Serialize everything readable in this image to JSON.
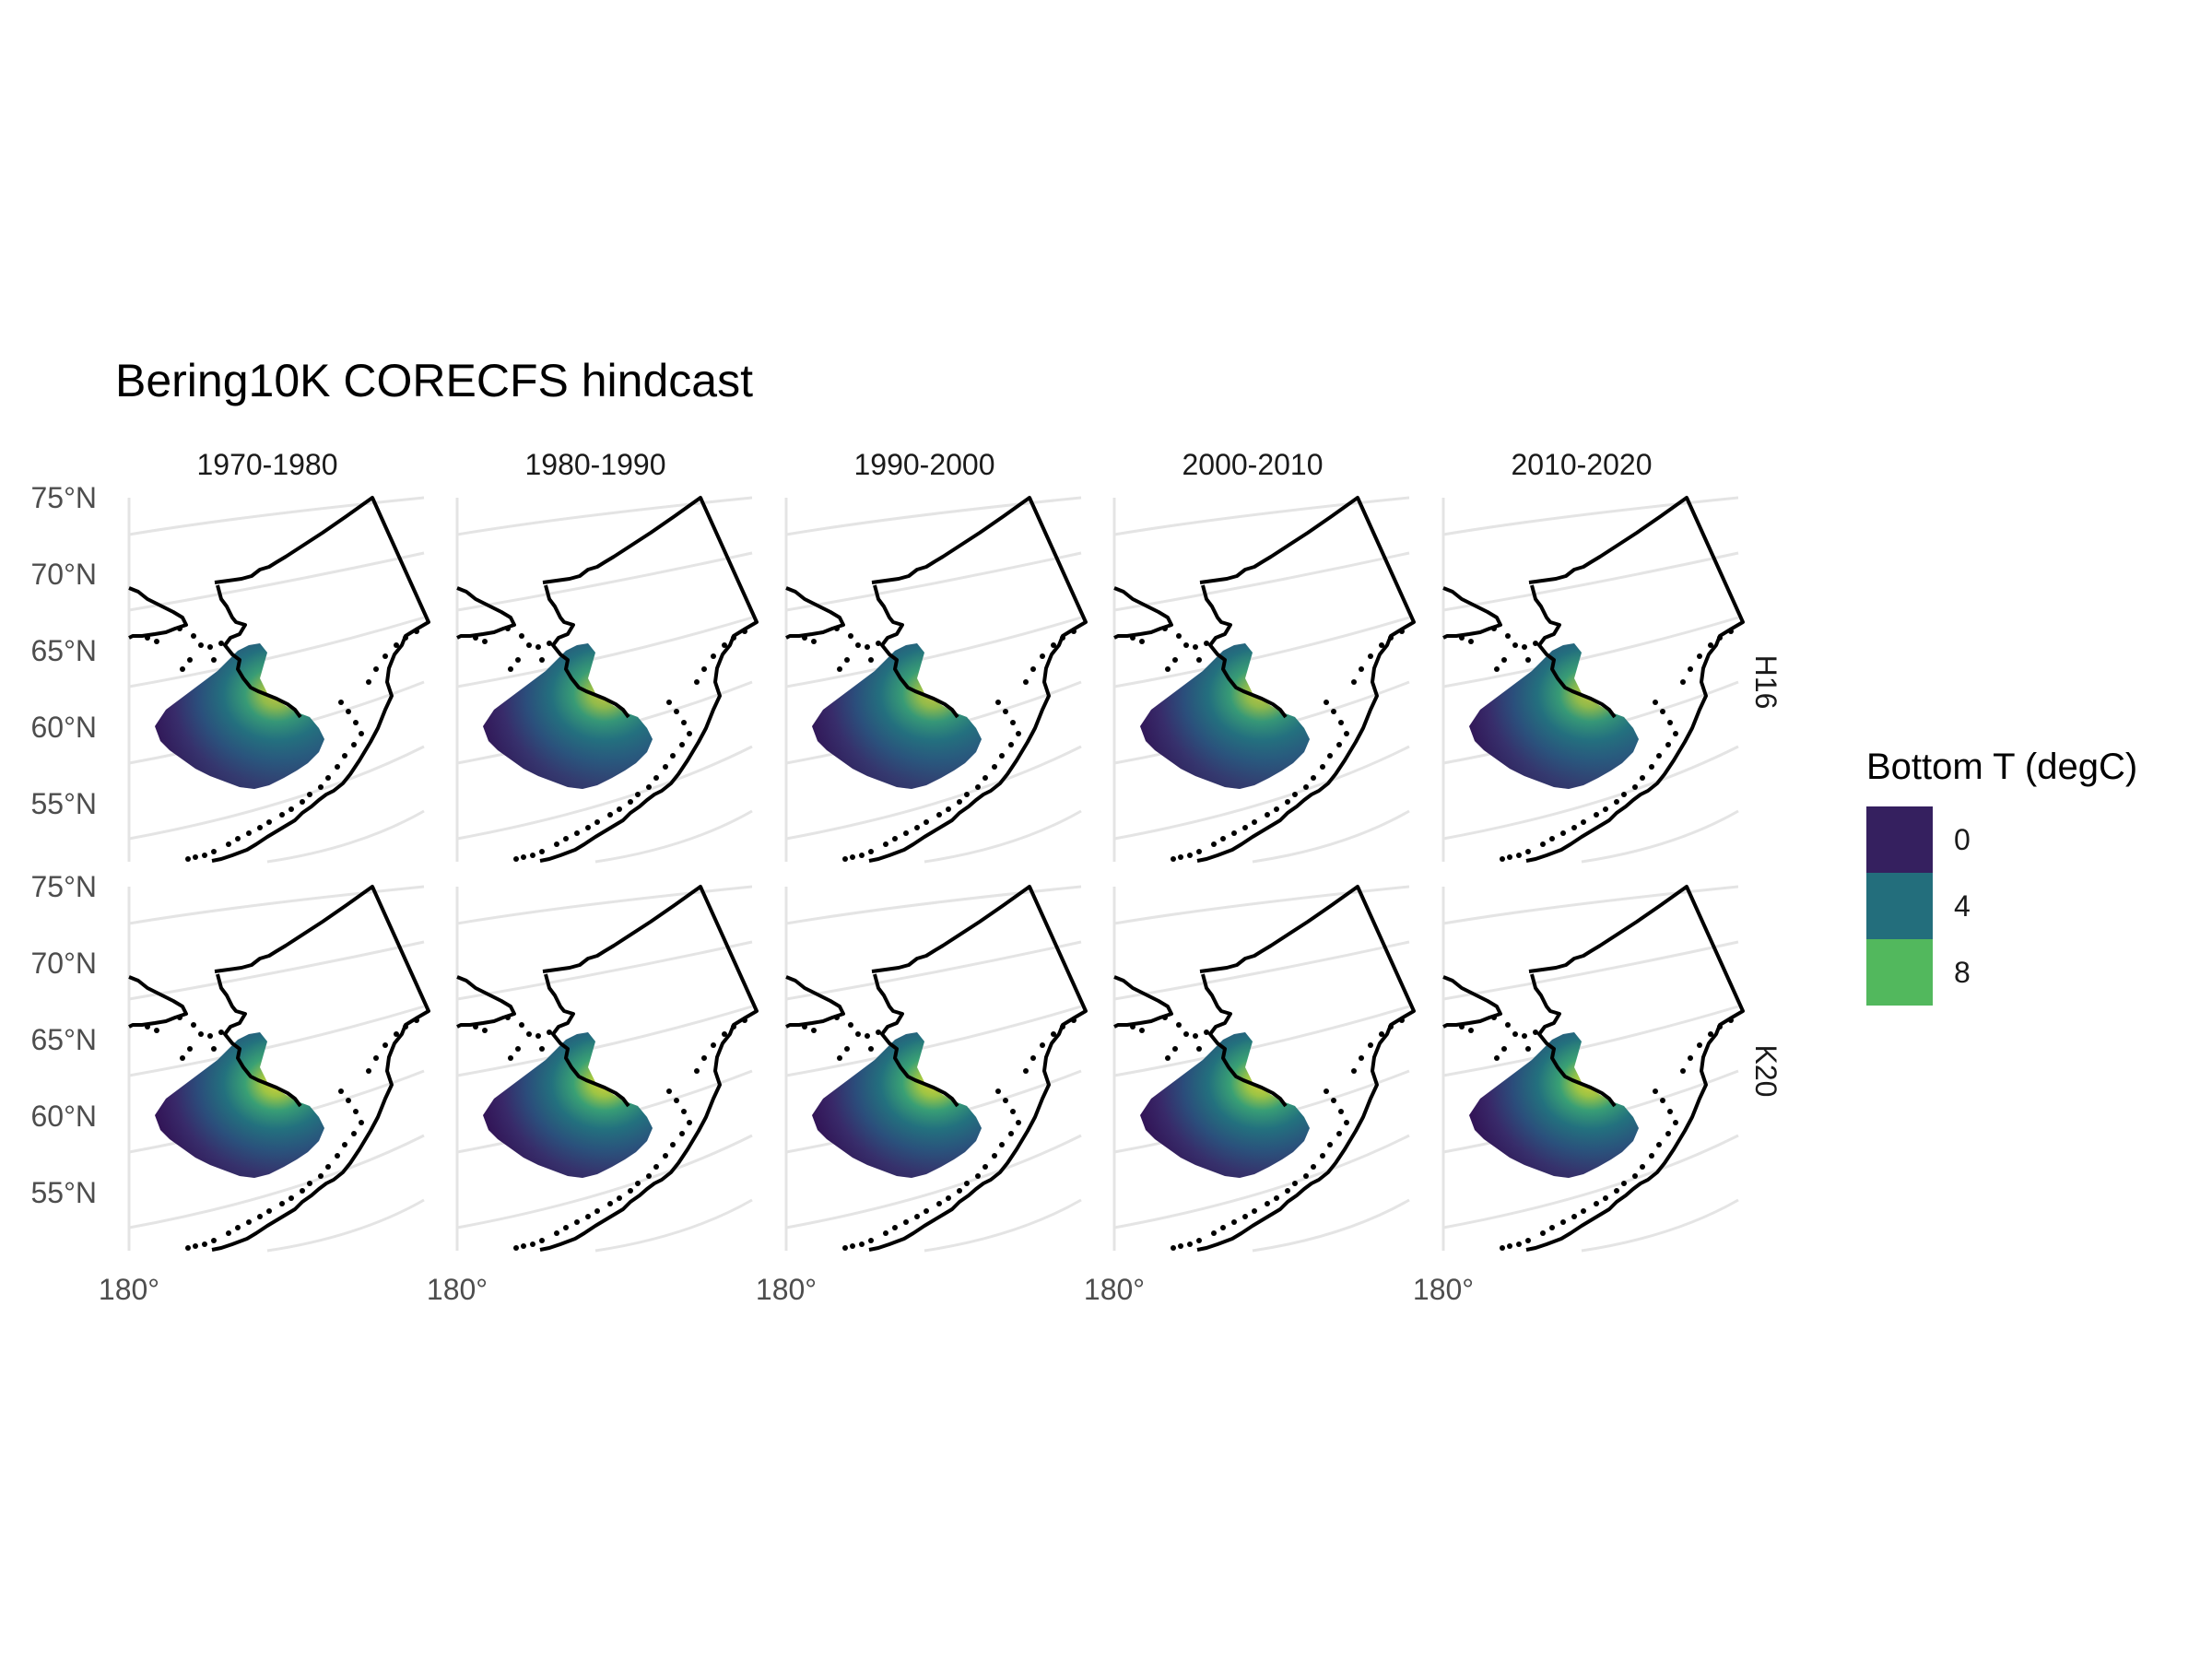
{
  "title": "Bering10K CORECFS hindcast",
  "columns": [
    "1970-1980",
    "1980-1990",
    "1990-2000",
    "2000-2010",
    "2010-2020"
  ],
  "rows": [
    "H16",
    "K20"
  ],
  "y_axis_labels": [
    "75°N",
    "70°N",
    "65°N",
    "60°N",
    "55°N"
  ],
  "x_axis_labels": [
    "180°"
  ],
  "legend": {
    "title": "Bottom T (degC)",
    "items": [
      {
        "label": "0",
        "color": "#35205f"
      },
      {
        "label": "4",
        "color": "#236e7c"
      },
      {
        "label": "8",
        "color": "#52b85d"
      }
    ]
  },
  "colors": {
    "deep_cold": "#3b1d5e",
    "mid": "#2a6b82",
    "warm": "#4db86a",
    "hot": "#e6e024"
  }
}
